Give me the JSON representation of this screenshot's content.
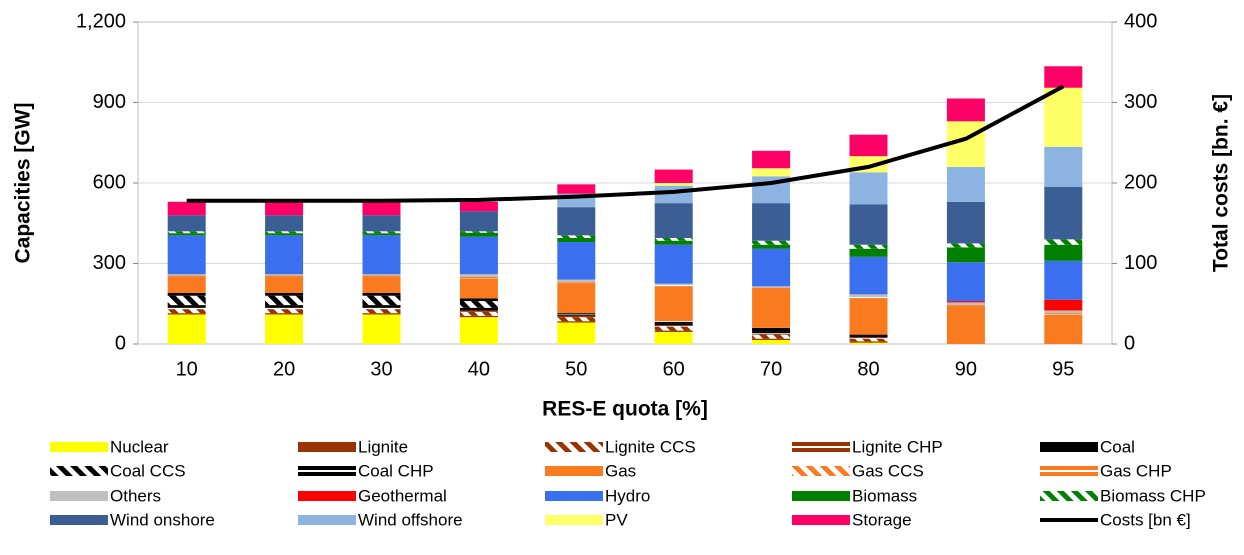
{
  "chart_data": {
    "type": "bar",
    "stacked": true,
    "x_label": "RES-E quota [%]",
    "y_label": "Capacities [GW]",
    "y2_label": "Total costs [bn. €]",
    "categories": [
      "10",
      "20",
      "30",
      "40",
      "50",
      "60",
      "70",
      "80",
      "90",
      "95"
    ],
    "ylim": [
      0,
      1200
    ],
    "yticks": [
      0,
      300,
      600,
      900,
      {
        "value": 1200,
        "label": "1,200"
      }
    ],
    "y2lim": [
      0,
      400
    ],
    "y2ticks": [
      0,
      100,
      200,
      300,
      400
    ],
    "grid": true,
    "legend": "bottom",
    "series": [
      {
        "name": "Nuclear",
        "color": "#ffff00",
        "pattern": "solid",
        "values": [
          110,
          110,
          110,
          100,
          80,
          45,
          15,
          5,
          0,
          0
        ]
      },
      {
        "name": "Lignite",
        "color": "#993300",
        "pattern": "solid",
        "values": [
          5,
          5,
          5,
          5,
          5,
          5,
          5,
          5,
          0,
          0
        ]
      },
      {
        "name": "Lignite CCS",
        "color": "#993300",
        "pattern": "hatch",
        "values": [
          15,
          15,
          15,
          15,
          15,
          15,
          15,
          10,
          0,
          0
        ]
      },
      {
        "name": "Lignite CHP",
        "color": "#993300",
        "pattern": "stripes",
        "values": [
          5,
          5,
          5,
          5,
          5,
          5,
          5,
          5,
          0,
          0
        ]
      },
      {
        "name": "Coal",
        "color": "#000000",
        "pattern": "solid",
        "values": [
          10,
          10,
          10,
          10,
          5,
          5,
          5,
          5,
          0,
          0
        ]
      },
      {
        "name": "Coal CCS",
        "color": "#000000",
        "pattern": "hatch",
        "values": [
          35,
          35,
          35,
          25,
          0,
          0,
          0,
          0,
          0,
          0
        ]
      },
      {
        "name": "Coal CHP",
        "color": "#000000",
        "pattern": "stripes",
        "values": [
          10,
          10,
          10,
          10,
          5,
          10,
          15,
          5,
          0,
          0
        ]
      },
      {
        "name": "Gas",
        "color": "#f97a1f",
        "pattern": "solid",
        "values": [
          60,
          60,
          60,
          75,
          110,
          130,
          145,
          135,
          140,
          110
        ]
      },
      {
        "name": "Gas CCS",
        "color": "#f97a1f",
        "pattern": "hatch",
        "values": [
          0,
          0,
          0,
          0,
          0,
          0,
          0,
          0,
          0,
          0
        ]
      },
      {
        "name": "Gas CHP",
        "color": "#f97a1f",
        "pattern": "stripes",
        "values": [
          5,
          5,
          5,
          5,
          5,
          5,
          5,
          5,
          5,
          5
        ]
      },
      {
        "name": "Others",
        "color": "#bfbfbf",
        "pattern": "solid",
        "values": [
          5,
          5,
          5,
          10,
          10,
          5,
          5,
          10,
          10,
          10
        ]
      },
      {
        "name": "Geothermal",
        "color": "#ff0000",
        "pattern": "solid",
        "values": [
          0,
          0,
          0,
          0,
          0,
          0,
          0,
          0,
          5,
          40
        ]
      },
      {
        "name": "Hydro",
        "color": "#3a6fef",
        "pattern": "solid",
        "values": [
          145,
          145,
          145,
          140,
          140,
          145,
          140,
          140,
          145,
          145
        ]
      },
      {
        "name": "Biomass",
        "color": "#008000",
        "pattern": "solid",
        "values": [
          8,
          8,
          8,
          15,
          15,
          15,
          15,
          30,
          55,
          60
        ]
      },
      {
        "name": "Biomass CHP",
        "color": "#008000",
        "pattern": "hatch",
        "values": [
          7,
          7,
          7,
          5,
          10,
          10,
          15,
          15,
          15,
          20
        ]
      },
      {
        "name": "Wind onshore",
        "color": "#3b5f94",
        "pattern": "solid",
        "values": [
          60,
          60,
          60,
          75,
          105,
          130,
          140,
          150,
          155,
          195
        ]
      },
      {
        "name": "Wind offshore",
        "color": "#8db3e2",
        "pattern": "solid",
        "values": [
          0,
          0,
          0,
          0,
          50,
          65,
          100,
          120,
          130,
          150
        ]
      },
      {
        "name": "PV",
        "color": "#ffff66",
        "pattern": "solid",
        "values": [
          0,
          0,
          0,
          0,
          0,
          10,
          30,
          60,
          170,
          220
        ]
      },
      {
        "name": "Storage",
        "color": "#ff0066",
        "pattern": "solid",
        "values": [
          50,
          50,
          50,
          35,
          35,
          50,
          65,
          80,
          85,
          80
        ]
      },
      {
        "name": "Costs [bn €]",
        "color": "#000000",
        "type": "line",
        "axis": "y2",
        "values": [
          178,
          178,
          178,
          179,
          183,
          189,
          200,
          220,
          255,
          320
        ]
      }
    ]
  }
}
